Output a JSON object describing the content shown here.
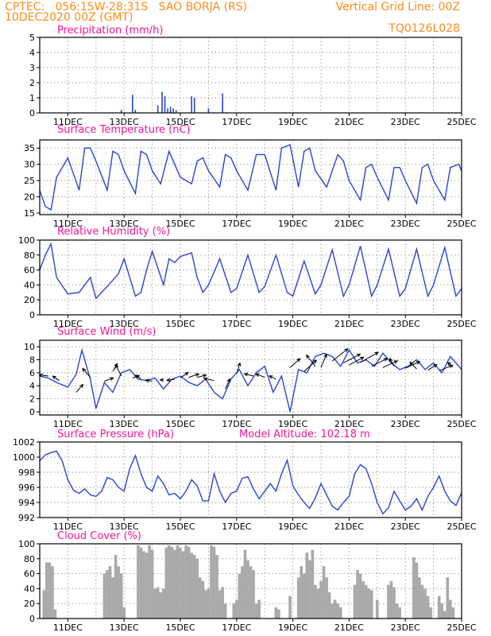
{
  "header": {
    "line1_left": "CPTEC:   056:15W-28:31S   SAO BORJA (RS)",
    "line2_left": "10DEC2020 00Z (GMT)",
    "line1_right": "Vertical Grid Line: 00Z",
    "line2_right": "TQ0126L028"
  },
  "x_axis": {
    "tick_labels": [
      "11DEC",
      "13DEC",
      "15DEC",
      "17DEC",
      "19DEC",
      "21DEC",
      "23DEC",
      "25DEC"
    ],
    "first_day": 10,
    "last_day": 25
  },
  "colors": {
    "series": "#2a45d6",
    "cloud": "#a9a9a9",
    "wind_arrow": "#000000",
    "header": "#ff8c1a",
    "panel_title": "#ff1493"
  },
  "chart_data": [
    {
      "id": "precip",
      "type": "bar",
      "title": "Precipitation (mm/h)",
      "ylim": [
        0,
        5
      ],
      "yticks": [
        "0",
        "1",
        "2",
        "3",
        "4",
        "5"
      ],
      "x": [
        12.9,
        13.3,
        13.4,
        14.2,
        14.35,
        14.45,
        14.55,
        14.65,
        14.75,
        14.85,
        15.4,
        15.5,
        16.0,
        16.5
      ],
      "values": [
        0.2,
        1.2,
        0.2,
        0.5,
        1.4,
        1.1,
        0.3,
        0.4,
        0.3,
        0.2,
        1.1,
        1.0,
        0.3,
        1.3
      ]
    },
    {
      "id": "temp",
      "type": "line",
      "title": "Surface Temperature (nC)",
      "ylim": [
        14.5,
        37.5
      ],
      "yticks": [
        "15",
        "20",
        "25",
        "30",
        "35"
      ],
      "x": [
        10.0,
        10.2,
        10.4,
        10.6,
        11.0,
        11.4,
        11.6,
        11.8,
        12.0,
        12.4,
        12.6,
        12.8,
        13.0,
        13.4,
        13.6,
        13.8,
        14.0,
        14.3,
        14.6,
        14.8,
        15.0,
        15.4,
        15.6,
        15.8,
        16.0,
        16.4,
        16.6,
        16.8,
        17.0,
        17.4,
        17.7,
        18.0,
        18.4,
        18.6,
        18.9,
        19.2,
        19.4,
        19.6,
        19.8,
        20.2,
        20.6,
        20.8,
        21.0,
        21.4,
        21.6,
        21.8,
        22.0,
        22.4,
        22.6,
        22.8,
        23.0,
        23.4,
        23.6,
        23.8,
        24.0,
        24.4,
        24.6,
        24.9,
        25.0
      ],
      "y": [
        22,
        17,
        16,
        26,
        32,
        22,
        35,
        35,
        31,
        22,
        34,
        33,
        28,
        21,
        34,
        33,
        28,
        24,
        34,
        30,
        26,
        24,
        31,
        32,
        28,
        23,
        33,
        32,
        28,
        22,
        33,
        33,
        22,
        35,
        36,
        23,
        34,
        35,
        28,
        23,
        33,
        31,
        25,
        19,
        29,
        30,
        26,
        19,
        29,
        29,
        25,
        18,
        29,
        30,
        25,
        19,
        29,
        30,
        28
      ]
    },
    {
      "id": "rh",
      "type": "line",
      "title": "Relative Humidity (%)",
      "ylim": [
        0,
        100
      ],
      "yticks": [
        "0",
        "20",
        "40",
        "60",
        "80",
        "100"
      ],
      "x": [
        10.0,
        10.2,
        10.4,
        10.6,
        11.0,
        11.4,
        11.8,
        12.0,
        12.4,
        12.8,
        13.0,
        13.4,
        13.6,
        13.8,
        14.0,
        14.4,
        14.6,
        14.8,
        15.0,
        15.4,
        15.6,
        15.8,
        16.0,
        16.4,
        16.8,
        17.0,
        17.4,
        17.8,
        18.0,
        18.4,
        18.8,
        19.0,
        19.4,
        19.8,
        20.0,
        20.4,
        20.8,
        21.0,
        21.4,
        21.8,
        22.0,
        22.4,
        22.8,
        23.0,
        23.4,
        23.8,
        24.0,
        24.4,
        24.8,
        25.0
      ],
      "y": [
        60,
        80,
        95,
        50,
        28,
        30,
        50,
        22,
        38,
        55,
        75,
        25,
        30,
        60,
        85,
        40,
        75,
        70,
        78,
        83,
        50,
        30,
        40,
        75,
        30,
        35,
        80,
        30,
        38,
        80,
        30,
        25,
        72,
        28,
        40,
        87,
        25,
        40,
        92,
        25,
        40,
        88,
        25,
        35,
        88,
        25,
        40,
        90,
        25,
        35
      ]
    },
    {
      "id": "wind",
      "type": "line",
      "title": "Surface Wind (m/s)",
      "ylim": [
        -0.5,
        11
      ],
      "yticks": [
        "0",
        "2",
        "4",
        "6",
        "8",
        "10"
      ],
      "x": [
        10.0,
        10.3,
        10.6,
        11.0,
        11.3,
        11.5,
        11.8,
        12.0,
        12.3,
        12.6,
        12.9,
        13.2,
        13.5,
        13.8,
        14.1,
        14.4,
        14.7,
        15.0,
        15.3,
        15.6,
        15.9,
        16.2,
        16.5,
        16.8,
        17.1,
        17.4,
        17.7,
        18.0,
        18.3,
        18.6,
        18.9,
        19.2,
        19.5,
        19.8,
        20.1,
        20.4,
        20.7,
        21.0,
        21.3,
        21.6,
        21.9,
        22.2,
        22.5,
        22.8,
        23.1,
        23.4,
        23.7,
        24.0,
        24.3,
        24.6,
        24.9,
        25.0
      ],
      "y": [
        5.5,
        5.2,
        4.5,
        3.8,
        5.8,
        9.5,
        5.0,
        0.5,
        4.5,
        3.0,
        6.0,
        6.5,
        5.0,
        4.8,
        5.2,
        3.5,
        5.0,
        5.5,
        4.5,
        4.0,
        5.0,
        3.0,
        2.0,
        5.0,
        6.5,
        4.0,
        6.0,
        7.0,
        3.0,
        5.5,
        0.0,
        6.5,
        6.0,
        8.5,
        9.0,
        8.5,
        7.0,
        9.5,
        7.5,
        8.0,
        7.0,
        9.0,
        7.5,
        6.5,
        7.0,
        8.0,
        6.5,
        7.5,
        6.0,
        8.5,
        7.0,
        6.5
      ]
    },
    {
      "id": "wind_vectors",
      "type": "vector",
      "x": [
        10.3,
        10.7,
        11.3,
        11.8,
        12.3,
        12.6,
        12.9,
        13.3,
        13.6,
        14.0,
        14.4,
        14.8,
        15.0,
        15.3,
        15.6,
        16.2,
        16.6,
        17.0,
        17.6,
        18.0,
        18.4,
        18.9,
        19.4,
        19.8,
        20.0,
        20.4,
        20.8,
        21.0,
        21.4,
        21.8,
        22.2,
        22.6,
        23.0,
        23.4,
        23.8,
        24.2,
        24.7
      ],
      "y": [
        5.5,
        4.8,
        3.0,
        5.3,
        4.7,
        6.2,
        5.5,
        5.2,
        5.1,
        4.7,
        4.9,
        5.0,
        5.2,
        5.3,
        5.3,
        4.8,
        3.5,
        5.8,
        5.5,
        5.3,
        5.0,
        6.8,
        6.2,
        7.0,
        6.8,
        7.8,
        7.5,
        7.2,
        7.6,
        7.0,
        6.8,
        7.0,
        6.7,
        6.6,
        6.4,
        6.3,
        6.9
      ],
      "u": [
        -0.8,
        -0.6,
        0.6,
        -0.7,
        0.8,
        0.4,
        -0.5,
        0.6,
        -0.5,
        -0.6,
        -0.3,
        -0.7,
        0.7,
        0.9,
        0.8,
        -0.9,
        0.4,
        0.3,
        -0.8,
        -0.8,
        -0.6,
        0.9,
        1.1,
        -0.8,
        0.5,
        1.4,
        1.5,
        1.3,
        1.6,
        1.4,
        1.3,
        -0.4,
        1.3,
        -0.6,
        0.8,
        1.2,
        -0.5
      ],
      "v": [
        0.1,
        0.4,
        0.7,
        0.8,
        0.3,
        0.7,
        1.0,
        0.2,
        0.3,
        0.1,
        0.0,
        -0.1,
        0.5,
        0.3,
        0.2,
        0.2,
        0.9,
        1.0,
        0.2,
        0.3,
        0.3,
        0.8,
        1.0,
        1.0,
        1.2,
        1.1,
        0.8,
        0.7,
        0.9,
        0.7,
        0.6,
        0.7,
        0.6,
        0.6,
        0.5,
        0.5,
        0.4
      ]
    },
    {
      "id": "pressure",
      "type": "line",
      "title": "Surface Pressure (hPa)",
      "annotation": "Model Altitude: 102.18 m",
      "ylim": [
        992,
        1002
      ],
      "yticks": [
        "992",
        "994",
        "996",
        "998",
        "1000",
        "1002"
      ],
      "x": [
        10.0,
        10.2,
        10.4,
        10.6,
        10.8,
        11.0,
        11.2,
        11.4,
        11.6,
        11.8,
        12.0,
        12.2,
        12.4,
        12.6,
        12.8,
        13.0,
        13.2,
        13.4,
        13.6,
        13.8,
        14.0,
        14.2,
        14.4,
        14.6,
        14.8,
        15.0,
        15.2,
        15.4,
        15.6,
        15.8,
        16.0,
        16.2,
        16.4,
        16.6,
        16.8,
        17.0,
        17.2,
        17.4,
        17.6,
        17.8,
        18.0,
        18.2,
        18.4,
        18.6,
        18.8,
        19.0,
        19.2,
        19.4,
        19.6,
        19.8,
        20.0,
        20.2,
        20.4,
        20.6,
        20.8,
        21.0,
        21.2,
        21.4,
        21.6,
        21.8,
        22.0,
        22.2,
        22.4,
        22.6,
        22.8,
        23.0,
        23.2,
        23.4,
        23.6,
        23.8,
        24.0,
        24.2,
        24.4,
        24.6,
        24.8,
        25.0
      ],
      "y": [
        999.5,
        1000.3,
        1000.6,
        1000.8,
        999.5,
        997.0,
        995.6,
        995.2,
        995.8,
        995.0,
        994.8,
        995.5,
        997.3,
        997.0,
        996.0,
        995.5,
        998.5,
        1000.2,
        997.8,
        996.0,
        995.5,
        997.5,
        996.5,
        995.0,
        995.2,
        994.5,
        995.5,
        997.0,
        996.2,
        994.2,
        994.2,
        997.8,
        995.5,
        994.0,
        995.2,
        995.5,
        997.2,
        997.4,
        995.8,
        994.5,
        995.5,
        996.5,
        995.5,
        997.8,
        999.6,
        996.2,
        995.0,
        994.0,
        993.2,
        994.6,
        996.5,
        995.0,
        993.5,
        993.0,
        994.0,
        994.8,
        997.8,
        999.0,
        998.5,
        996.5,
        994.0,
        992.5,
        993.3,
        995.5,
        994.2,
        993.0,
        993.5,
        994.5,
        993.0,
        994.8,
        996.0,
        997.5,
        995.5,
        994.2,
        993.6,
        995.3
      ]
    },
    {
      "id": "cloud",
      "type": "area",
      "title": "Cloud Cover (%)",
      "ylim": [
        0,
        100
      ],
      "yticks": [
        "0",
        "20",
        "40",
        "60",
        "80",
        "100"
      ],
      "x": [
        10.05,
        10.15,
        10.25,
        10.35,
        10.45,
        10.55,
        11.0,
        12.2,
        12.3,
        12.4,
        12.5,
        12.6,
        12.7,
        12.8,
        12.9,
        13.0,
        13.1,
        13.2,
        13.5,
        13.6,
        13.7,
        13.8,
        13.9,
        14.0,
        14.1,
        14.2,
        14.3,
        14.4,
        14.5,
        14.6,
        14.7,
        14.8,
        14.9,
        15.0,
        15.1,
        15.2,
        15.3,
        15.4,
        15.5,
        15.6,
        15.7,
        15.8,
        15.9,
        16.0,
        16.1,
        16.2,
        16.3,
        16.4,
        16.5,
        16.6,
        16.7,
        16.8,
        16.9,
        17.0,
        17.1,
        17.2,
        17.3,
        17.4,
        17.5,
        17.6,
        17.7,
        17.8,
        17.9,
        18.0,
        18.1,
        18.2,
        18.3,
        18.4,
        18.5,
        18.6,
        18.7,
        18.8,
        18.9,
        19.0,
        19.2,
        19.3,
        19.4,
        19.5,
        19.6,
        19.7,
        19.8,
        19.9,
        20.0,
        20.1,
        20.2,
        20.3,
        20.4,
        20.5,
        20.6,
        20.7,
        21.0,
        21.2,
        21.3,
        21.4,
        21.5,
        21.6,
        21.7,
        21.8,
        22.0,
        22.2,
        22.4,
        22.5,
        22.6,
        22.7,
        22.8,
        22.9,
        23.0,
        23.3,
        23.4,
        23.5,
        23.6,
        23.7,
        23.8,
        23.9,
        24.0,
        24.1,
        24.2,
        24.3,
        24.4,
        24.5,
        24.6,
        24.7,
        24.8
      ],
      "y": [
        0,
        38,
        75,
        75,
        70,
        12,
        0,
        0,
        60,
        65,
        70,
        55,
        85,
        70,
        60,
        15,
        0,
        0,
        98,
        95,
        90,
        88,
        98,
        92,
        40,
        42,
        35,
        40,
        95,
        98,
        96,
        92,
        98,
        95,
        90,
        98,
        96,
        88,
        85,
        80,
        55,
        50,
        38,
        40,
        98,
        96,
        85,
        38,
        42,
        20,
        0,
        0,
        20,
        25,
        60,
        70,
        92,
        78,
        70,
        65,
        20,
        25,
        0,
        0,
        0,
        0,
        0,
        15,
        12,
        0,
        0,
        0,
        30,
        0,
        55,
        70,
        60,
        88,
        78,
        92,
        45,
        40,
        50,
        70,
        55,
        35,
        20,
        25,
        20,
        15,
        0,
        45,
        65,
        60,
        50,
        45,
        40,
        38,
        25,
        0,
        45,
        50,
        42,
        20,
        15,
        0,
        0,
        82,
        75,
        55,
        45,
        40,
        30,
        15,
        0,
        0,
        30,
        20,
        10,
        55,
        25,
        15,
        0
      ]
    }
  ]
}
